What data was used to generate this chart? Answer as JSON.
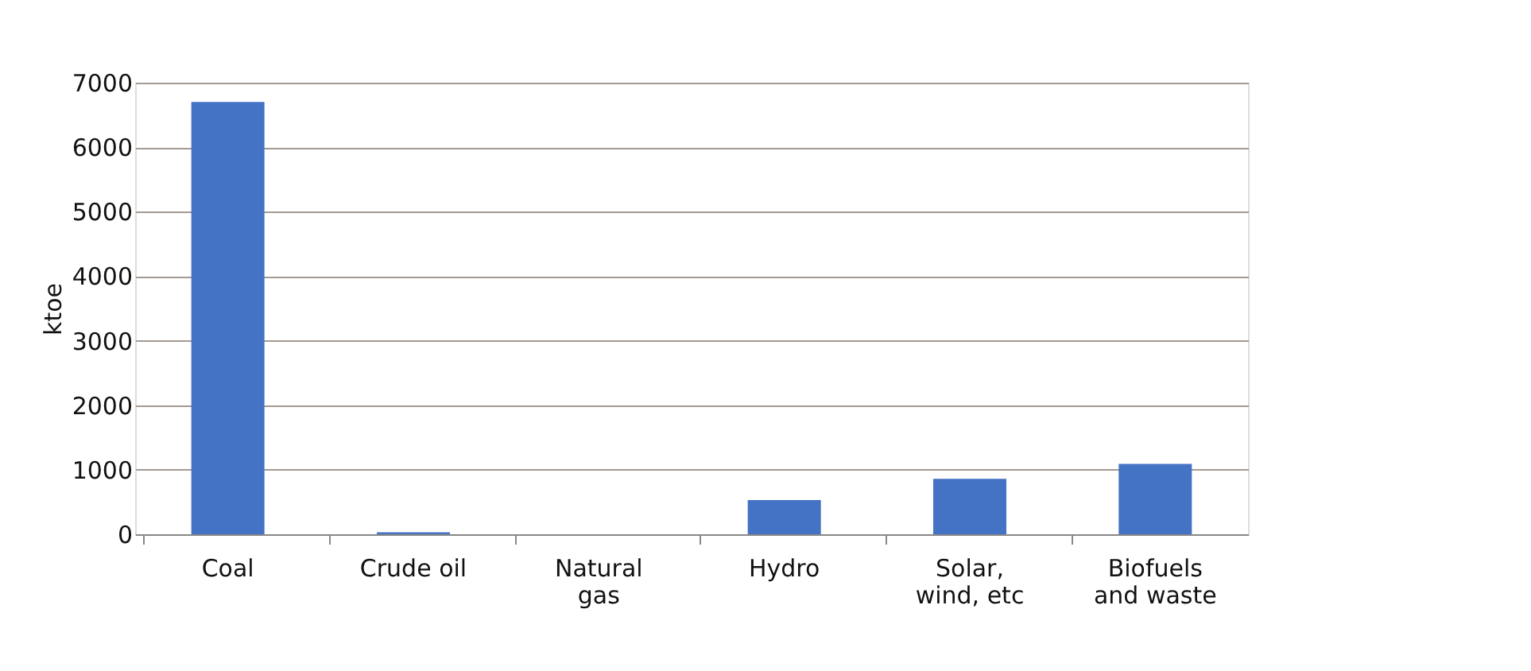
{
  "chart_data": {
    "type": "bar",
    "ylabel": "ktoe",
    "categories": [
      "Coal",
      "Crude oil",
      "Natural gas",
      "Hydro",
      "Solar, wind, etc",
      "Biofuels and waste"
    ],
    "values": [
      6700,
      30,
      0,
      530,
      860,
      1090
    ],
    "color": "#4472c4",
    "ylim": [
      0,
      7000
    ],
    "yticks": [
      0,
      1000,
      2000,
      3000,
      4000,
      5000,
      6000,
      7000
    ],
    "grid": "y"
  }
}
